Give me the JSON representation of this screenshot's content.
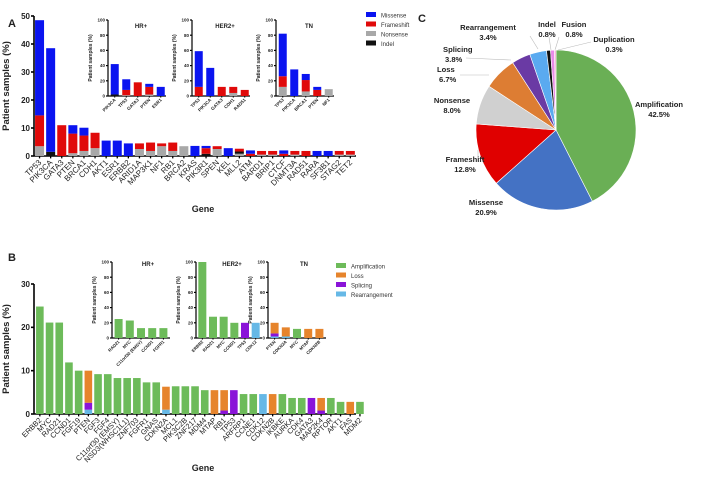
{
  "colors": {
    "Missense": "#0a14f0",
    "Frameshift": "#e00a0a",
    "Nonsense": "#a8a8a8",
    "Indel": "#111111",
    "Amplification": "#6dbb5a",
    "Loss": "#e6842c",
    "Splicing": "#8a14d8",
    "Rearrangement": "#66b8e6"
  },
  "chart_data": [
    {
      "id": "A",
      "panel_label": "A",
      "type": "bar",
      "stacked": true,
      "title": "",
      "xlabel": "Gene",
      "ylabel": "Patient samples (%)",
      "ylim": [
        0,
        50
      ],
      "yticks": [
        0,
        10,
        20,
        30,
        40,
        50
      ],
      "series_names": [
        "Nonsense",
        "Indel",
        "Frameshift",
        "Missense"
      ],
      "legend": {
        "entries": [
          "Missense",
          "Frameshift",
          "Nonsense",
          "Indel"
        ],
        "placement": "top-right"
      },
      "categories": [
        "TP53",
        "PIK3CA",
        "GATA3",
        "PTEN",
        "BRCA1",
        "CDH1",
        "AKT1",
        "ESR1",
        "ERBB2",
        "ARID1A",
        "MAP3K1",
        "NF1",
        "RB1",
        "BRCA2",
        "KRAS",
        "PIK3R1",
        "SPEN",
        "KEL",
        "MLL2",
        "ATM",
        "BARD1",
        "BRIP1",
        "CTCF",
        "DNMT3A",
        "RAD51",
        "RARA",
        "SF3B1",
        "STAG2",
        "TET2"
      ],
      "series": [
        {
          "name": "Nonsense",
          "values": [
            3.5,
            0,
            0,
            1,
            1.8,
            2.8,
            0,
            0,
            0,
            2.5,
            1.8,
            3.5,
            1.8,
            3.5,
            0,
            0,
            2.5,
            0,
            0.8,
            0,
            0.5,
            0.5,
            0,
            0.5,
            0,
            0,
            0,
            0.5,
            0.5
          ]
        },
        {
          "name": "Indel",
          "values": [
            0,
            1.5,
            0,
            0,
            0,
            0,
            0,
            0,
            0,
            0,
            0,
            0,
            0,
            0,
            0,
            0.8,
            0,
            0,
            0.8,
            0,
            0,
            0,
            0,
            0,
            0,
            0,
            0,
            0,
            0
          ]
        },
        {
          "name": "Frameshift",
          "values": [
            11,
            0,
            11,
            7,
            5.5,
            5.5,
            0,
            0,
            0,
            2,
            3,
            1,
            3,
            0,
            0,
            2,
            1,
            0,
            1,
            0.8,
            1.3,
            1.3,
            0.8,
            1.3,
            1.8,
            0,
            0,
            1.3,
            1.3
          ]
        },
        {
          "name": "Missense",
          "values": [
            34,
            37,
            0,
            3,
            2.8,
            0,
            5.5,
            5.5,
            4.5,
            0,
            0,
            0,
            0,
            0,
            3.6,
            0.8,
            0,
            2.8,
            0,
            1.2,
            0,
            0,
            1.2,
            0,
            0,
            1.8,
            1.8,
            0,
            0
          ]
        }
      ],
      "insets": [
        {
          "title": "HR+",
          "ylabel": "Patient samples (%)",
          "ylim": [
            0,
            100
          ],
          "yticks": [
            0,
            20,
            40,
            60,
            80,
            100
          ],
          "categories": [
            "PIK3CA",
            "TP53",
            "GATA3",
            "PTEN",
            "ESR1"
          ],
          "series": [
            {
              "name": "Nonsense",
              "values": [
                0,
                1,
                0,
                2,
                0
              ]
            },
            {
              "name": "Indel",
              "values": [
                2,
                0,
                0,
                0,
                0
              ]
            },
            {
              "name": "Frameshift",
              "values": [
                0,
                7,
                18,
                10,
                0
              ]
            },
            {
              "name": "Missense",
              "values": [
                40,
                14,
                0,
                4,
                12
              ]
            }
          ]
        },
        {
          "title": "HER2+",
          "ylabel": "Patient samples (%)",
          "ylim": [
            0,
            100
          ],
          "yticks": [
            0,
            20,
            40,
            60,
            80,
            100
          ],
          "categories": [
            "TP53",
            "PIK3CA",
            "GATA3",
            "CDH1",
            "RAD51"
          ],
          "series": [
            {
              "name": "Nonsense",
              "values": [
                0,
                0,
                0,
                4,
                0
              ]
            },
            {
              "name": "Indel",
              "values": [
                0,
                0,
                0,
                0,
                0
              ]
            },
            {
              "name": "Frameshift",
              "values": [
                12,
                0,
                12,
                8,
                8
              ]
            },
            {
              "name": "Missense",
              "values": [
                47,
                37,
                0,
                0,
                0
              ]
            }
          ]
        },
        {
          "title": "TN",
          "ylabel": "Patient samples (%)",
          "ylim": [
            0,
            100
          ],
          "yticks": [
            0,
            20,
            40,
            60,
            80,
            100
          ],
          "categories": [
            "TP53",
            "PIK3CA",
            "BRCA1",
            "PTEN",
            "NF1"
          ],
          "series": [
            {
              "name": "Nonsense",
              "values": [
                12,
                0,
                6,
                0,
                9
              ]
            },
            {
              "name": "Indel",
              "values": [
                0,
                0,
                0,
                0,
                0
              ]
            },
            {
              "name": "Frameshift",
              "values": [
                14,
                0,
                15,
                8,
                0
              ]
            },
            {
              "name": "Missense",
              "values": [
                56,
                35,
                8,
                4,
                0
              ]
            }
          ]
        }
      ]
    },
    {
      "id": "B",
      "panel_label": "B",
      "type": "bar",
      "stacked": true,
      "title": "",
      "xlabel": "Gene",
      "ylabel": "Patient samples (%)",
      "ylim": [
        0,
        30
      ],
      "yticks": [
        0,
        10,
        20,
        30
      ],
      "series_names": [
        "Rearrangement",
        "Splicing",
        "Loss",
        "Amplification"
      ],
      "legend": {
        "entries": [
          "Amplification",
          "Loss",
          "Splicing",
          "Rearrangement"
        ],
        "placement": "top-right"
      },
      "categories": [
        "ERBB2",
        "MYC",
        "RAD21",
        "CCND1",
        "FGF19",
        "PTEN",
        "FGF3",
        "FGF4",
        "C11orf30 (EMSY)",
        "NSD3(WHSC1L1)",
        "ZNF703",
        "FGFR1",
        "GNAS",
        "CDKN2A",
        "MCL1",
        "PIK3C2B",
        "ZNF217",
        "MDM4",
        "MTAP",
        "RB1",
        "TP53",
        "ARFRP1",
        "CCNE1",
        "CDK12",
        "CDKN2B",
        "IKBKE",
        "AURKA",
        "CDK4",
        "GATA3",
        "MAP2K4",
        "RPTOR",
        "AKT1",
        "FAS",
        "MDM2"
      ],
      "series": [
        {
          "name": "Rearrangement",
          "values": [
            0,
            0,
            0,
            0,
            0,
            1,
            0,
            0,
            0,
            0,
            0,
            0,
            0,
            1,
            0,
            0,
            0,
            0,
            0,
            0,
            0,
            0,
            0,
            4.6,
            0,
            0,
            0,
            0,
            0,
            0,
            0,
            0,
            0,
            0
          ]
        },
        {
          "name": "Splicing",
          "values": [
            0,
            0,
            0,
            0,
            0,
            1.6,
            0,
            0,
            0,
            0,
            0,
            0,
            0,
            0,
            0,
            0,
            0,
            0,
            0,
            0.8,
            5.5,
            0,
            0,
            0,
            0,
            0,
            0,
            0,
            3.7,
            0.8,
            0,
            0,
            0,
            0
          ]
        },
        {
          "name": "Loss",
          "values": [
            0,
            0,
            0,
            0,
            0,
            7.4,
            0,
            0,
            0,
            0,
            0,
            0,
            0,
            5.3,
            0,
            0,
            0,
            0,
            5.5,
            4.7,
            0,
            0,
            0,
            0,
            4.6,
            0,
            0,
            0,
            0,
            2.9,
            0,
            0,
            2.8,
            0
          ]
        },
        {
          "name": "Amplification",
          "values": [
            24.8,
            21.1,
            21.1,
            11.9,
            10,
            0,
            9.2,
            9.2,
            8.3,
            8.3,
            8.3,
            7.3,
            7.3,
            0,
            6.4,
            6.4,
            6.4,
            5.5,
            0,
            0,
            0,
            4.6,
            4.6,
            0,
            0,
            4.6,
            3.7,
            3.7,
            0,
            0,
            3.7,
            2.8,
            0,
            2.8
          ]
        }
      ],
      "insets": [
        {
          "title": "HR+",
          "ylabel": "Patient samples (%)",
          "ylim": [
            0,
            100
          ],
          "yticks": [
            0,
            20,
            40,
            60,
            80,
            100
          ],
          "categories": [
            "RAD21",
            "MYC",
            "C11orf30 (EMSY)",
            "CCND1",
            "FGFR1"
          ],
          "series": [
            {
              "name": "Rearrangement",
              "values": [
                0,
                0,
                0,
                0,
                0
              ]
            },
            {
              "name": "Splicing",
              "values": [
                0,
                0,
                0,
                0,
                0
              ]
            },
            {
              "name": "Loss",
              "values": [
                0,
                0,
                0,
                0,
                0
              ]
            },
            {
              "name": "Amplification",
              "values": [
                25,
                23,
                13,
                13,
                13
              ]
            }
          ]
        },
        {
          "title": "HER2+",
          "ylabel": "Patient samples (%)",
          "ylim": [
            0,
            100
          ],
          "yticks": [
            0,
            20,
            40,
            60,
            80,
            100
          ],
          "categories": [
            "ERBB2",
            "RAD21",
            "MYC",
            "CCND1",
            "TP53",
            "CDK12"
          ],
          "series": [
            {
              "name": "Rearrangement",
              "values": [
                0,
                0,
                0,
                0,
                0,
                20
              ]
            },
            {
              "name": "Splicing",
              "values": [
                0,
                0,
                0,
                0,
                20,
                0
              ]
            },
            {
              "name": "Loss",
              "values": [
                0,
                0,
                0,
                0,
                0,
                0
              ]
            },
            {
              "name": "Amplification",
              "values": [
                100,
                28,
                28,
                20,
                0,
                0
              ]
            }
          ]
        },
        {
          "title": "TN",
          "ylabel": "Patient samples (%)",
          "ylim": [
            0,
            100
          ],
          "yticks": [
            0,
            20,
            40,
            60,
            80,
            100
          ],
          "categories": [
            "PTEN",
            "CDKN2A",
            "MYC",
            "MTAP",
            "CDKN2B"
          ],
          "series": [
            {
              "name": "Rearrangement",
              "values": [
                2,
                2,
                0,
                0,
                0
              ]
            },
            {
              "name": "Splicing",
              "values": [
                4,
                0,
                0,
                0,
                0
              ]
            },
            {
              "name": "Loss",
              "values": [
                14,
                12,
                0,
                12,
                12
              ]
            },
            {
              "name": "Amplification",
              "values": [
                0,
                0,
                12,
                0,
                0
              ]
            }
          ]
        }
      ]
    },
    {
      "id": "C",
      "panel_label": "C",
      "type": "pie",
      "title": "",
      "slices": [
        {
          "label": "Amplification",
          "value": 42.5,
          "text": "42.5%",
          "color": "#6aaf55"
        },
        {
          "label": "Missense",
          "value": 20.9,
          "text": "20.9%",
          "color": "#4472c4"
        },
        {
          "label": "Frameshift",
          "value": 12.8,
          "text": "12.8%",
          "color": "#e00000"
        },
        {
          "label": "Nonsense",
          "value": 8.0,
          "text": "8.0%",
          "color": "#d0d0d0"
        },
        {
          "label": "Loss",
          "value": 6.7,
          "text": "6.7%",
          "color": "#dd7d33"
        },
        {
          "label": "Splicing",
          "value": 3.8,
          "text": "3.8%",
          "color": "#6a3aa4"
        },
        {
          "label": "Rearrangement",
          "value": 3.4,
          "text": "3.4%",
          "color": "#5aaaf0"
        },
        {
          "label": "Indel",
          "value": 0.8,
          "text": "0.8%",
          "color": "#111111"
        },
        {
          "label": "Fusion",
          "value": 0.8,
          "text": "0.8%",
          "color": "#e88ae8"
        },
        {
          "label": "Duplication",
          "value": 0.3,
          "text": "0.3%",
          "color": "#f4a0c8"
        }
      ]
    }
  ]
}
